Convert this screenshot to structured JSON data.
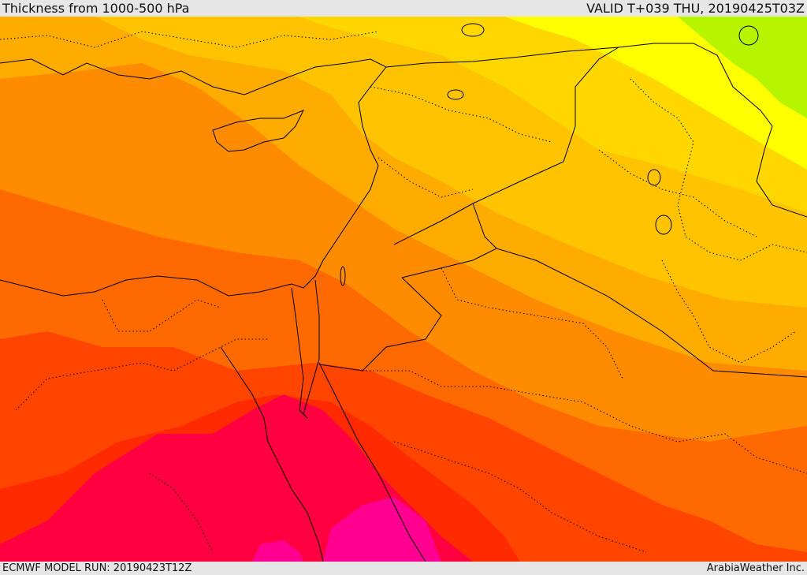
{
  "header": {
    "title": "Thickness from 1000-500 hPa",
    "valid": "VALID T+039 THU, 20190425T03Z"
  },
  "footer": {
    "model_run": "ECMWF MODEL RUN: 20190423T12Z",
    "credit": "ArabiaWeather Inc."
  },
  "map": {
    "field": "1000-500 hPa thickness",
    "color_bands": [
      "#b7f400",
      "#ffff00",
      "#ffd700",
      "#ffc300",
      "#ffab00",
      "#ff8c00",
      "#ff6a00",
      "#ff4500",
      "#ff2a00",
      "#ff0040",
      "#ff0090"
    ],
    "border_color": "#000000"
  }
}
